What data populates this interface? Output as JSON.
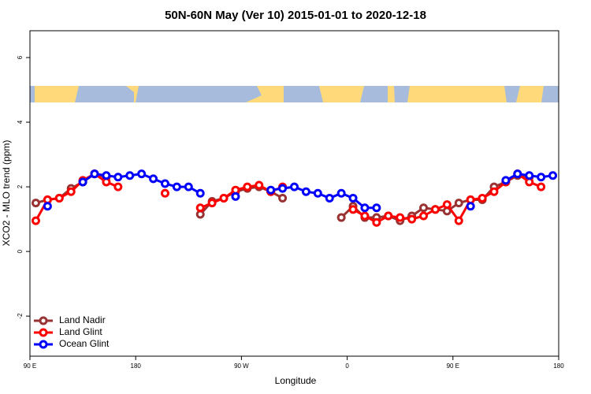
{
  "chart_data": {
    "type": "line",
    "title": "50N-60N May (Ver 10)   2015-01-01 to 2020-12-18",
    "x_label": "Longitude",
    "y_label": "XCO2 - MLO trend (ppm)",
    "x": [
      95,
      105,
      115,
      125,
      135,
      145,
      155,
      165,
      175,
      185,
      195,
      205,
      215,
      225,
      235,
      245,
      255,
      265,
      275,
      285,
      295,
      305,
      315,
      325,
      335,
      345,
      355,
      365,
      375,
      385,
      395,
      405,
      415,
      425,
      435,
      445,
      455,
      465,
      475,
      485,
      495,
      505,
      515,
      525,
      535
    ],
    "series": [
      {
        "name": "Land Nadir",
        "color": "#993333",
        "values": [
          1.5,
          1.6,
          1.65,
          1.95,
          2.15,
          2.4,
          2.3,
          null,
          null,
          null,
          null,
          null,
          null,
          null,
          1.15,
          1.55,
          1.65,
          1.85,
          1.95,
          2.0,
          1.85,
          1.65,
          null,
          null,
          null,
          null,
          1.05,
          1.4,
          1.05,
          1.05,
          1.1,
          0.95,
          1.1,
          1.35,
          1.3,
          1.25,
          1.5,
          1.6,
          1.6,
          2.0,
          2.15,
          2.35,
          2.3,
          null,
          null
        ]
      },
      {
        "name": "Land Glint",
        "color": "#ff0000",
        "values": [
          0.95,
          1.6,
          1.65,
          1.85,
          2.2,
          2.4,
          2.15,
          2.0,
          null,
          null,
          null,
          1.8,
          null,
          null,
          1.35,
          1.5,
          1.65,
          1.9,
          2.0,
          2.05,
          1.85,
          2.0,
          null,
          null,
          null,
          null,
          null,
          1.3,
          1.1,
          0.9,
          1.1,
          1.05,
          1.0,
          1.1,
          1.3,
          1.45,
          0.95,
          1.6,
          1.65,
          1.85,
          2.15,
          2.4,
          2.15,
          2.0,
          null
        ]
      },
      {
        "name": "Ocean Glint",
        "color": "#0000ff",
        "values": [
          null,
          1.4,
          null,
          null,
          2.15,
          2.4,
          2.35,
          2.3,
          2.35,
          2.4,
          2.25,
          2.1,
          2.0,
          2.0,
          1.8,
          null,
          null,
          1.7,
          null,
          null,
          1.9,
          1.95,
          2.0,
          1.85,
          1.8,
          1.65,
          1.8,
          1.65,
          1.35,
          1.35,
          null,
          null,
          null,
          null,
          null,
          null,
          null,
          1.4,
          null,
          null,
          2.2,
          2.4,
          2.35,
          2.3,
          2.35
        ]
      }
    ],
    "xlim": [
      90,
      540
    ],
    "xticks": [
      {
        "value": 90,
        "label": "90 E"
      },
      {
        "value": 180,
        "label": "180"
      },
      {
        "value": 270,
        "label": "90 W"
      },
      {
        "value": 360,
        "label": "0"
      },
      {
        "value": 450,
        "label": "90 E"
      },
      {
        "value": 540,
        "label": "180"
      }
    ],
    "ylim": [
      -3.24,
      6.83
    ],
    "yticks": [
      -2,
      0,
      2,
      4,
      6
    ],
    "legend": "bottom-left"
  }
}
